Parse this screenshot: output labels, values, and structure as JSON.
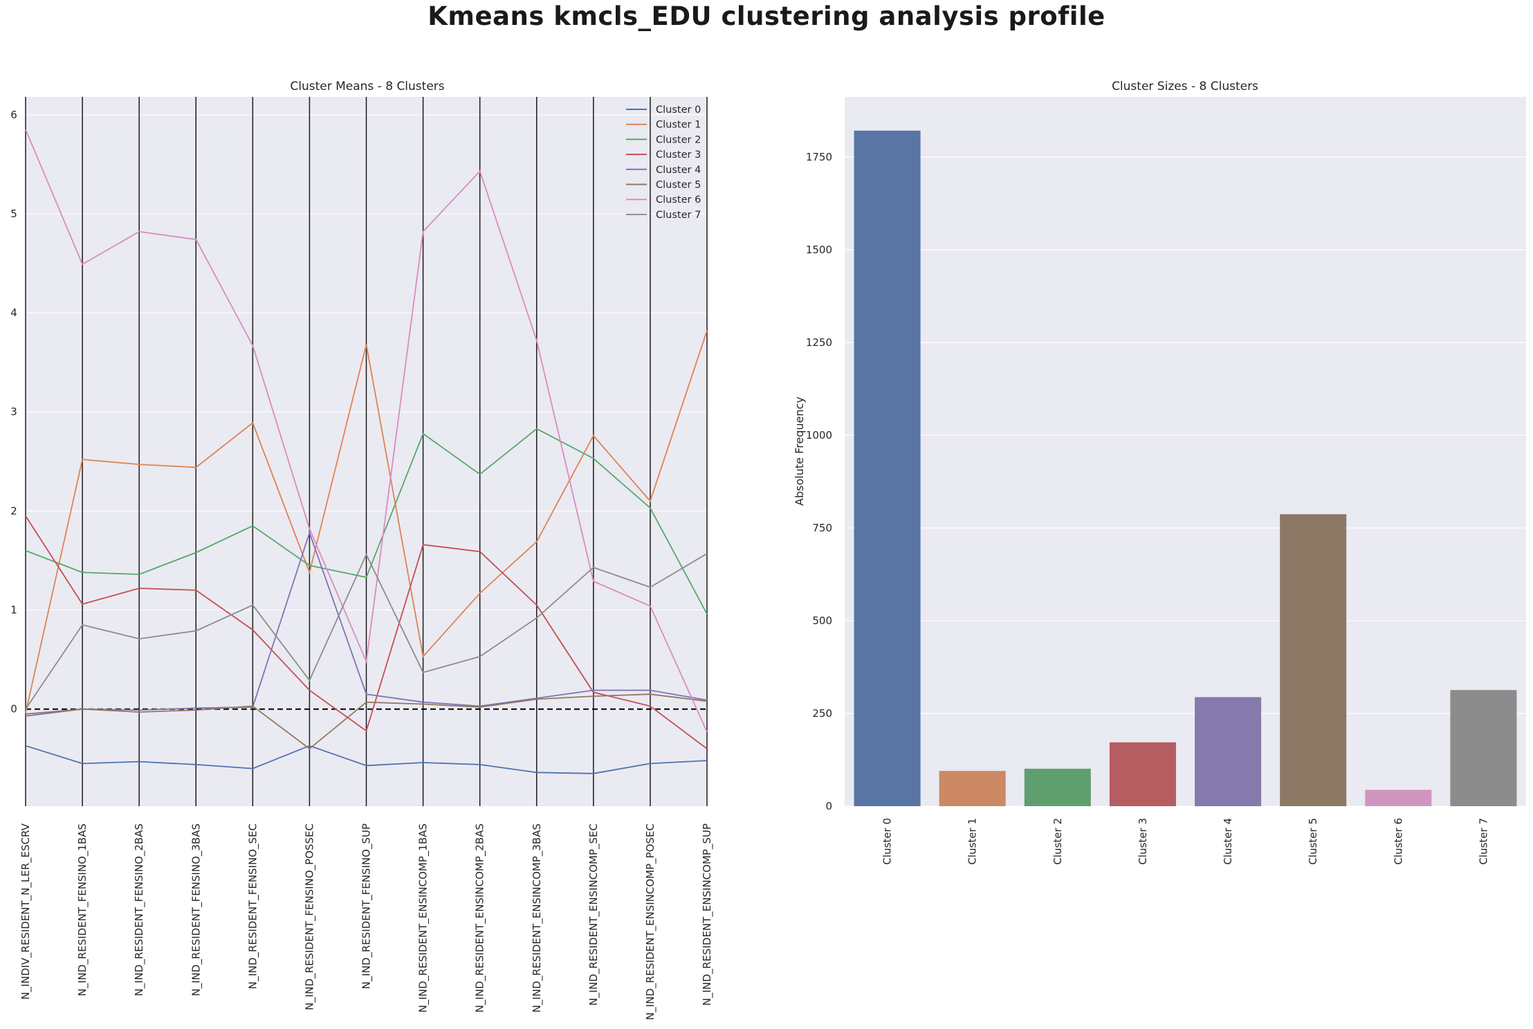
{
  "suptitle": "Kmeans kmcls_EDU clustering analysis profile",
  "chart_data": [
    {
      "type": "line",
      "title": "Cluster Means - 8 Clusters",
      "xlabel": "",
      "ylabel": "",
      "ylim": [
        -0.98,
        6.18
      ],
      "yticks": [
        0,
        1,
        2,
        3,
        4,
        5,
        6
      ],
      "reference_line": 0,
      "grid": true,
      "legend_position": "top-right",
      "categories": [
        "N_INDIV_RESIDENT_N_LER_ESCRV",
        "N_IND_RESIDENT_FENSINO_1BAS",
        "N_IND_RESIDENT_FENSINO_2BAS",
        "N_IND_RESIDENT_FENSINO_3BAS",
        "N_IND_RESIDENT_FENSINO_SEC",
        "N_IND_RESIDENT_FENSINO_POSSEC",
        "N_IND_RESIDENT_FENSINO_SUP",
        "N_IND_RESIDENT_ENSINCOMP_1BAS",
        "N_IND_RESIDENT_ENSINCOMP_2BAS",
        "N_IND_RESIDENT_ENSINCOMP_3BAS",
        "N_IND_RESIDENT_ENSINCOMP_SEC",
        "N_IND_RESIDENT_ENSINCOMP_POSEC",
        "N_IND_RESIDENT_ENSINCOMP_SUP"
      ],
      "series": [
        {
          "name": "Cluster 0",
          "color": "#4c72b0",
          "values": [
            -0.37,
            -0.55,
            -0.53,
            -0.56,
            -0.6,
            -0.37,
            -0.57,
            -0.54,
            -0.56,
            -0.64,
            -0.65,
            -0.55,
            -0.52
          ]
        },
        {
          "name": "Cluster 1",
          "color": "#dd8452",
          "values": [
            -0.04,
            2.52,
            2.47,
            2.44,
            2.89,
            1.38,
            3.68,
            0.53,
            1.17,
            1.69,
            2.76,
            2.1,
            3.82
          ]
        },
        {
          "name": "Cluster 2",
          "color": "#55a868",
          "values": [
            1.6,
            1.38,
            1.36,
            1.58,
            1.85,
            1.45,
            1.33,
            2.78,
            2.37,
            2.83,
            2.53,
            2.03,
            0.96
          ]
        },
        {
          "name": "Cluster 3",
          "color": "#c44e52",
          "values": [
            1.95,
            1.06,
            1.22,
            1.2,
            0.8,
            0.19,
            -0.22,
            1.66,
            1.59,
            1.05,
            0.17,
            0.03,
            -0.4
          ]
        },
        {
          "name": "Cluster 4",
          "color": "#8172b3",
          "values": [
            -0.07,
            0.0,
            -0.01,
            0.01,
            0.02,
            1.78,
            0.15,
            0.07,
            0.03,
            0.11,
            0.19,
            0.19,
            0.09
          ]
        },
        {
          "name": "Cluster 5",
          "color": "#937860",
          "values": [
            -0.05,
            0.0,
            -0.03,
            -0.01,
            0.03,
            -0.4,
            0.07,
            0.05,
            0.02,
            0.1,
            0.13,
            0.15,
            0.08
          ]
        },
        {
          "name": "Cluster 6",
          "color": "#da8bc3",
          "values": [
            5.85,
            4.49,
            4.82,
            4.74,
            3.67,
            1.82,
            0.48,
            4.82,
            5.43,
            3.72,
            1.29,
            1.04,
            -0.23
          ]
        },
        {
          "name": "Cluster 7",
          "color": "#8c8c8c",
          "values": [
            0.0,
            0.85,
            0.71,
            0.79,
            1.05,
            0.29,
            1.56,
            0.37,
            0.53,
            0.92,
            1.43,
            1.23,
            1.57
          ]
        }
      ]
    },
    {
      "type": "bar",
      "title": "Cluster Sizes - 8 Clusters",
      "xlabel": "",
      "ylabel": "Absolute Frequency",
      "ylim": [
        0,
        1912
      ],
      "yticks": [
        0,
        250,
        500,
        750,
        1000,
        1250,
        1500,
        1750
      ],
      "grid": true,
      "categories": [
        "Cluster 0",
        "Cluster 1",
        "Cluster 2",
        "Cluster 3",
        "Cluster 4",
        "Cluster 5",
        "Cluster 6",
        "Cluster 7"
      ],
      "values": [
        1821,
        95,
        101,
        172,
        294,
        787,
        44,
        313
      ],
      "colors": [
        "#5975a4",
        "#cc8963",
        "#5f9e6e",
        "#b55d60",
        "#857aab",
        "#8d7866",
        "#d095bf",
        "#8c8c8c"
      ]
    }
  ]
}
